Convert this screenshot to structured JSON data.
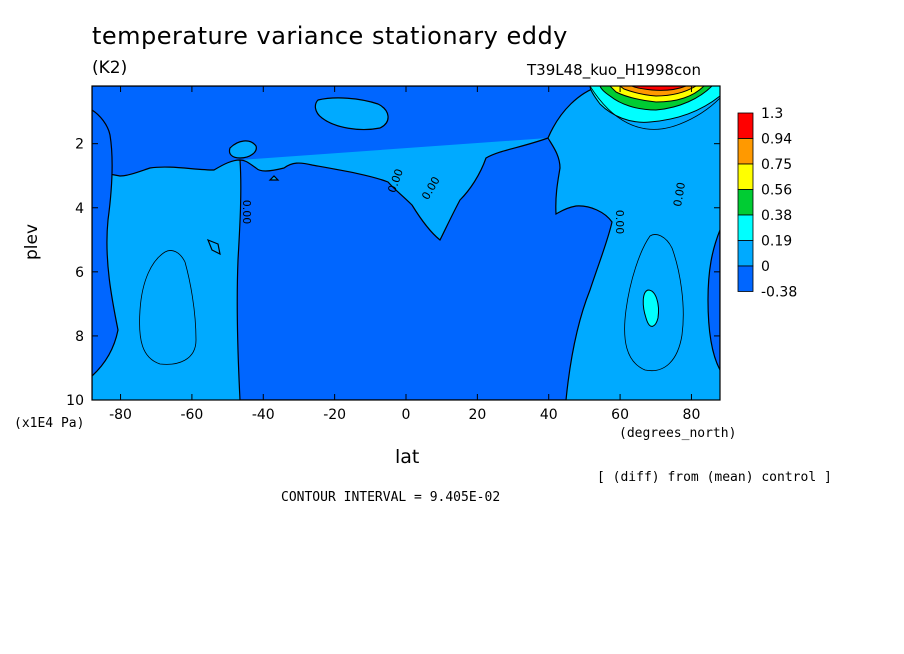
{
  "header": {
    "title": "temperature variance stationary eddy",
    "units": "(K2)",
    "experiment": "T39L48_kuo_H1998con"
  },
  "footer": {
    "diff_note": "[ (diff) from (mean) control ]",
    "contour_interval": "CONTOUR INTERVAL = 9.405E-02"
  },
  "chart_data": {
    "type": "heatmap",
    "title": "temperature variance stationary eddy",
    "subtitle": "(K2)",
    "annotation": "T39L48_kuo_H1998con",
    "xlabel": "lat",
    "x_units": "(degrees_north)",
    "ylabel": "plev",
    "y_units": "(x1E4 Pa)",
    "xlim": [
      -88,
      88
    ],
    "ylim": [
      10,
      0.2
    ],
    "x_ticks": [
      -80,
      -60,
      -40,
      -20,
      0,
      20,
      40,
      60,
      80
    ],
    "x_tick_labels": [
      "-80",
      "-60",
      "-40",
      "-20",
      "0",
      "20",
      "40",
      "60",
      "80"
    ],
    "y_ticks": [
      2,
      4,
      6,
      8,
      10
    ],
    "y_tick_labels": [
      "2",
      "4",
      "6",
      "8",
      "10"
    ],
    "colorbar": {
      "levels": [
        "1.3",
        "0.94",
        "0.75",
        "0.56",
        "0.38",
        "0.19",
        "0",
        "-0.38"
      ],
      "colors": [
        "#ff0000",
        "#ff9900",
        "#ffff00",
        "#00cc33",
        "#00ffff",
        "#00aaff",
        "#0066ff"
      ]
    },
    "contour_labels": [
      "0.00",
      "0.00",
      "0.00",
      "0.00",
      "0.00",
      "0.00"
    ],
    "contour_interval": 0.09405,
    "grid": false,
    "legend_position": "right"
  }
}
